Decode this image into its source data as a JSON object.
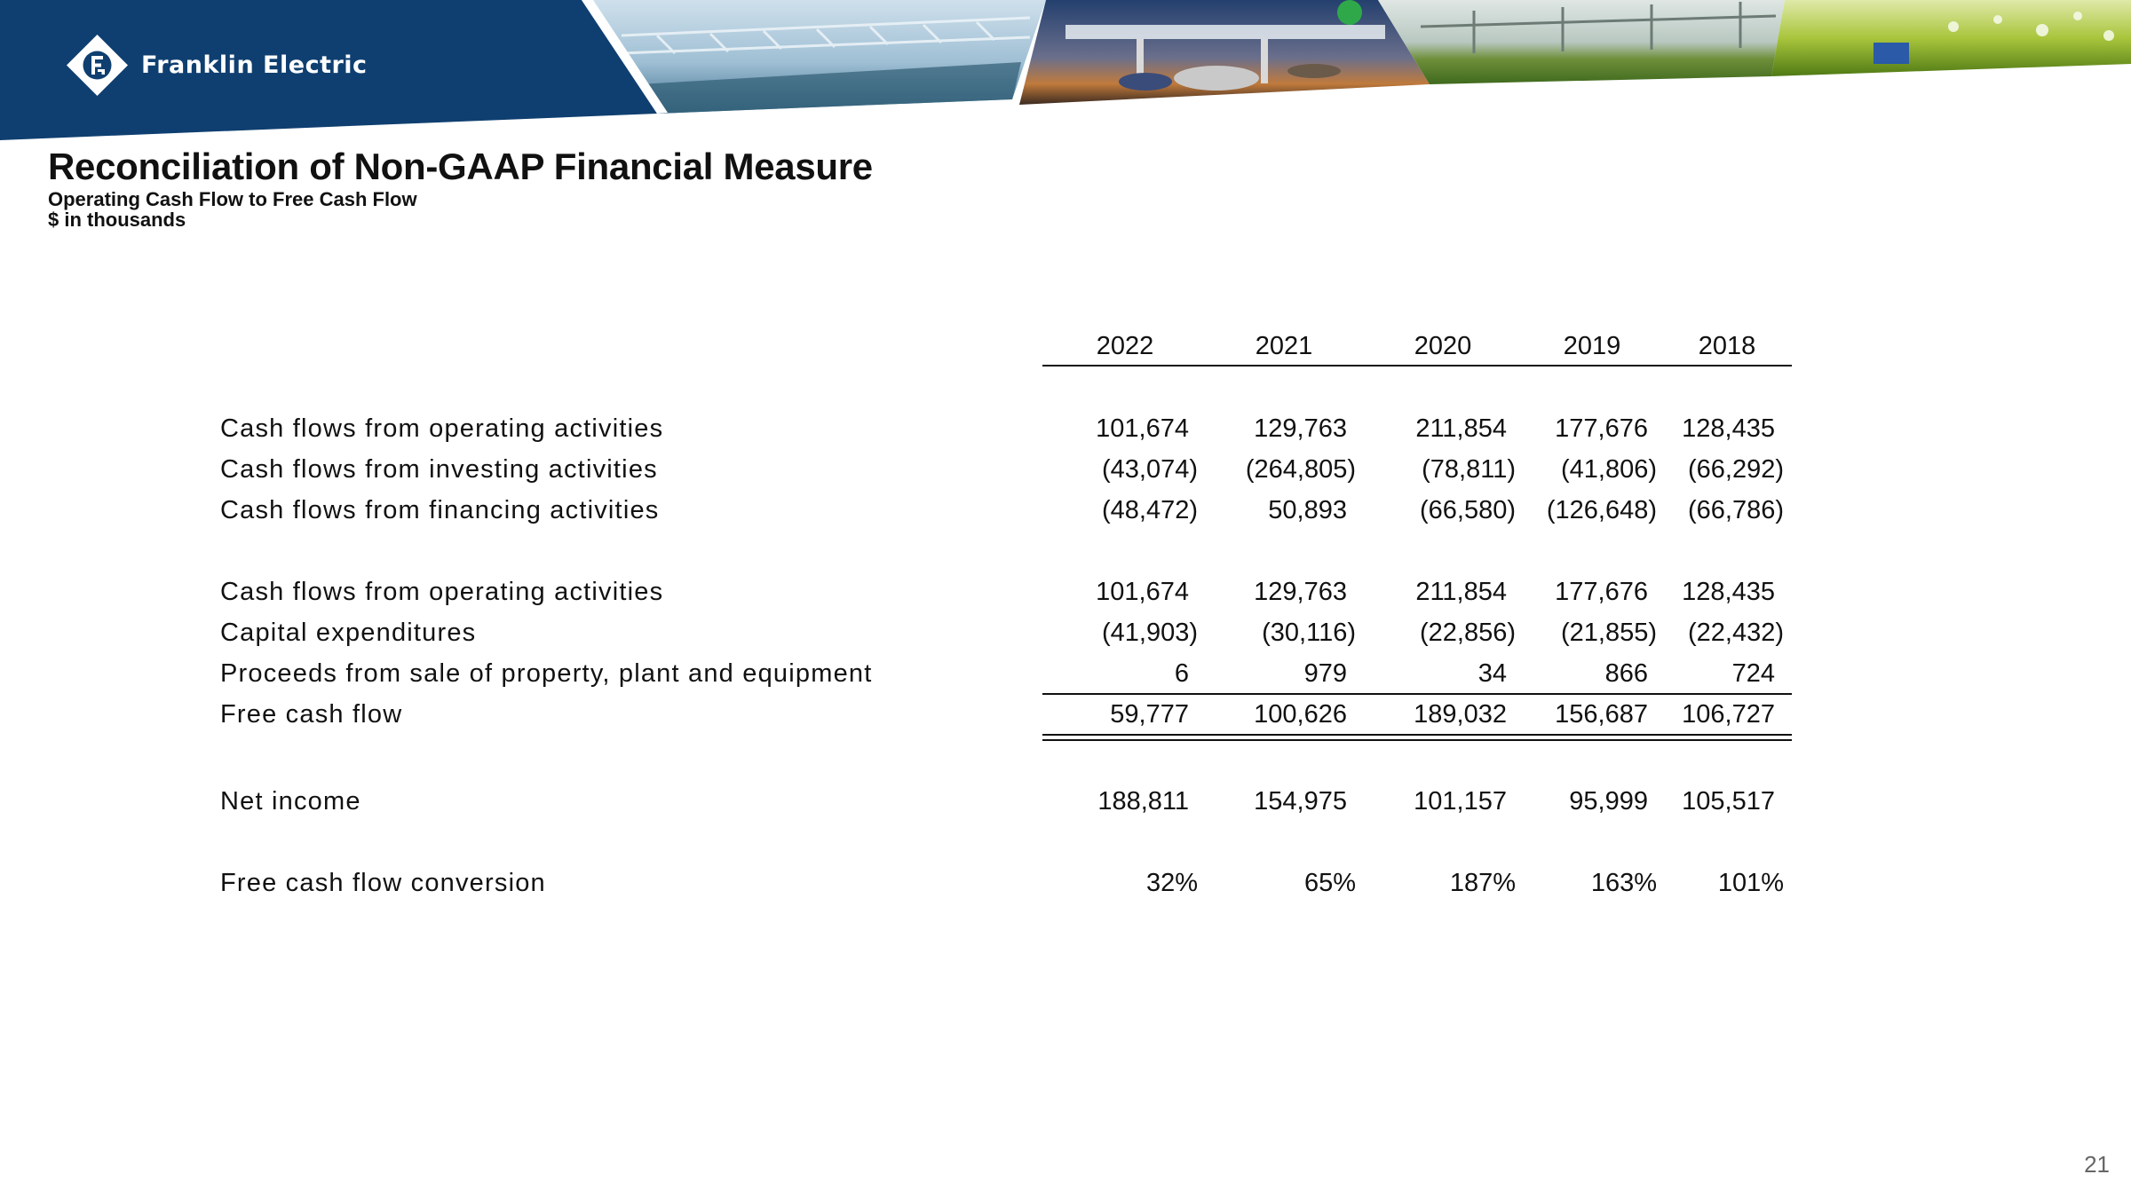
{
  "brand": {
    "name": "Franklin Electric",
    "colors": {
      "navy": "#0f3f70",
      "white": "#ffffff"
    }
  },
  "header": {
    "title": "Reconciliation of Non-GAAP Financial Measure",
    "subtitle_line1": "Operating Cash Flow to Free Cash Flow",
    "subtitle_line2": "$ in thousands"
  },
  "table": {
    "years": [
      "2022",
      "2021",
      "2020",
      "2019",
      "2018"
    ],
    "rows": [
      {
        "label": "Cash flows from operating activities",
        "values": [
          "101,674",
          "129,763",
          "211,854",
          "177,676",
          "128,435"
        ]
      },
      {
        "label": "Cash flows from investing activities",
        "values": [
          "(43,074)",
          "(264,805)",
          "(78,811)",
          "(41,806)",
          "(66,292)"
        ]
      },
      {
        "label": "Cash flows from financing activities",
        "values": [
          "(48,472)",
          "50,893",
          "(66,580)",
          "(126,648)",
          "(66,786)"
        ]
      },
      {
        "label": "Cash flows from operating activities",
        "values": [
          "101,674",
          "129,763",
          "211,854",
          "177,676",
          "128,435"
        ]
      },
      {
        "label": "Capital expenditures",
        "values": [
          "(41,903)",
          "(30,116)",
          "(22,856)",
          "(21,855)",
          "(22,432)"
        ]
      },
      {
        "label": "Proceeds from sale of property, plant and equipment",
        "values": [
          "6",
          "979",
          "34",
          "866",
          "724"
        ]
      },
      {
        "label": "Free cash flow",
        "values": [
          "59,777",
          "100,626",
          "189,032",
          "156,687",
          "106,727"
        ]
      },
      {
        "label": "Net income",
        "values": [
          "188,811",
          "154,975",
          "101,157",
          "95,999",
          "105,517"
        ]
      },
      {
        "label": "Free cash flow conversion",
        "values": [
          "32%",
          "65%",
          "187%",
          "163%",
          "101%"
        ]
      }
    ]
  },
  "footer": {
    "page_number": "21"
  }
}
